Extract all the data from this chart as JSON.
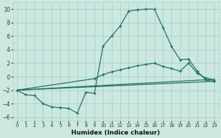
{
  "xlabel": "Humidex (Indice chaleur)",
  "ylabel": "",
  "bg_color": "#cce8e0",
  "grid_color": "#a8d4cc",
  "line_color": "#1a7060",
  "xlim": [
    -0.5,
    23.5
  ],
  "ylim": [
    -6.5,
    11
  ],
  "line1_x": [
    0,
    1,
    2,
    3,
    4,
    5,
    6,
    7,
    8,
    9,
    10,
    11,
    12,
    13,
    14,
    15,
    16,
    17,
    18,
    19,
    20,
    21,
    22,
    23
  ],
  "line1_y": [
    -2.0,
    -2.7,
    -2.8,
    -4.0,
    -4.5,
    -4.6,
    -4.7,
    -5.4,
    -2.3,
    -2.5,
    4.5,
    6.0,
    7.5,
    9.7,
    9.9,
    10.0,
    10.0,
    7.3,
    4.5,
    2.5,
    2.6,
    0.8,
    -0.5,
    -0.7
  ],
  "line2_x": [
    0,
    9,
    10,
    11,
    12,
    13,
    14,
    15,
    16,
    17,
    18,
    19,
    20,
    21,
    22,
    23
  ],
  "line2_y": [
    -2.0,
    -0.3,
    0.3,
    0.7,
    1.0,
    1.3,
    1.6,
    1.8,
    2.0,
    1.5,
    1.2,
    0.8,
    2.0,
    0.5,
    -0.2,
    -0.5
  ],
  "line3_x": [
    0,
    23
  ],
  "line3_y": [
    -2.0,
    -0.4
  ],
  "line4_x": [
    0,
    23
  ],
  "line4_y": [
    -2.0,
    -0.7
  ]
}
